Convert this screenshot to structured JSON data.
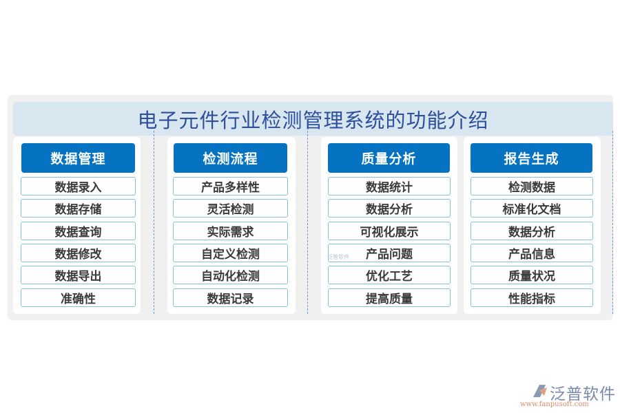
{
  "title": "电子元件行业检测管理系统的功能介绍",
  "columns": [
    {
      "header": "数据管理",
      "items": [
        "数据录入",
        "数据存储",
        "数据查询",
        "数据修改",
        "数据导出",
        "准确性"
      ]
    },
    {
      "header": "检测流程",
      "items": [
        "产品多样性",
        "灵活检测",
        "实际需求",
        "自定义检测",
        "自动化检测",
        "数据记录"
      ]
    },
    {
      "header": "质量分析",
      "items": [
        "数据统计",
        "数据分析",
        "可视化展示",
        "产品问题",
        "优化工艺",
        "提高质量"
      ]
    },
    {
      "header": "报告生成",
      "items": [
        "检测数据",
        "标准化文档",
        "数据分析",
        "产品信息",
        "质量状况",
        "性能指标"
      ]
    }
  ],
  "watermark": "泛普软件",
  "logo": {
    "name": "泛普软件",
    "url": "www.fanpusoft.com"
  },
  "colors": {
    "header": "#0672c2",
    "title": "#2d4f9c",
    "title_band": "#d8e6f0",
    "item_border": "#86bde2"
  }
}
